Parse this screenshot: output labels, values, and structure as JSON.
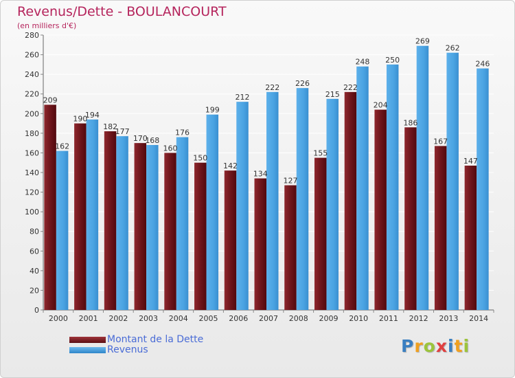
{
  "header": {
    "title": "Revenus/Dette - BOULANCOURT",
    "subtitle": "(en milliers d'€)"
  },
  "legend": {
    "items": [
      {
        "label": "Montant de la Dette",
        "color": "#7a1d22"
      },
      {
        "label": "Revenus",
        "color": "#4aa3e2"
      }
    ]
  },
  "logo": {
    "text": "Proxiti",
    "letters": [
      {
        "ch": "P",
        "color": "#3a7fc1"
      },
      {
        "ch": "r",
        "color": "#f0a020"
      },
      {
        "ch": "o",
        "color": "#9cc43c"
      },
      {
        "ch": "x",
        "color": "#e04040"
      },
      {
        "ch": "i",
        "color": "#3a7fc1"
      },
      {
        "ch": "t",
        "color": "#f0a020"
      },
      {
        "ch": "i",
        "color": "#9cc43c"
      }
    ]
  },
  "chart_data": {
    "type": "bar",
    "title": "Revenus/Dette - BOULANCOURT",
    "subtitle": "(en milliers d'€)",
    "categories": [
      "2000",
      "2001",
      "2002",
      "2003",
      "2004",
      "2005",
      "2006",
      "2007",
      "2008",
      "2009",
      "2010",
      "2011",
      "2012",
      "2013",
      "2014"
    ],
    "series": [
      {
        "name": "Montant de la Dette",
        "color": "#7a1d22",
        "values": [
          209,
          190,
          182,
          170,
          160,
          150,
          142,
          134,
          127,
          155,
          222,
          204,
          186,
          167,
          147
        ]
      },
      {
        "name": "Revenus",
        "color": "#4aa3e2",
        "values": [
          162,
          194,
          177,
          168,
          176,
          199,
          212,
          222,
          226,
          215,
          248,
          250,
          269,
          262,
          246
        ]
      }
    ],
    "ylim": [
      0,
      280
    ],
    "yticks": [
      0,
      20,
      40,
      60,
      80,
      100,
      120,
      140,
      160,
      180,
      200,
      220,
      240,
      260,
      280
    ],
    "grid": true,
    "legend_position": "bottom-left"
  }
}
